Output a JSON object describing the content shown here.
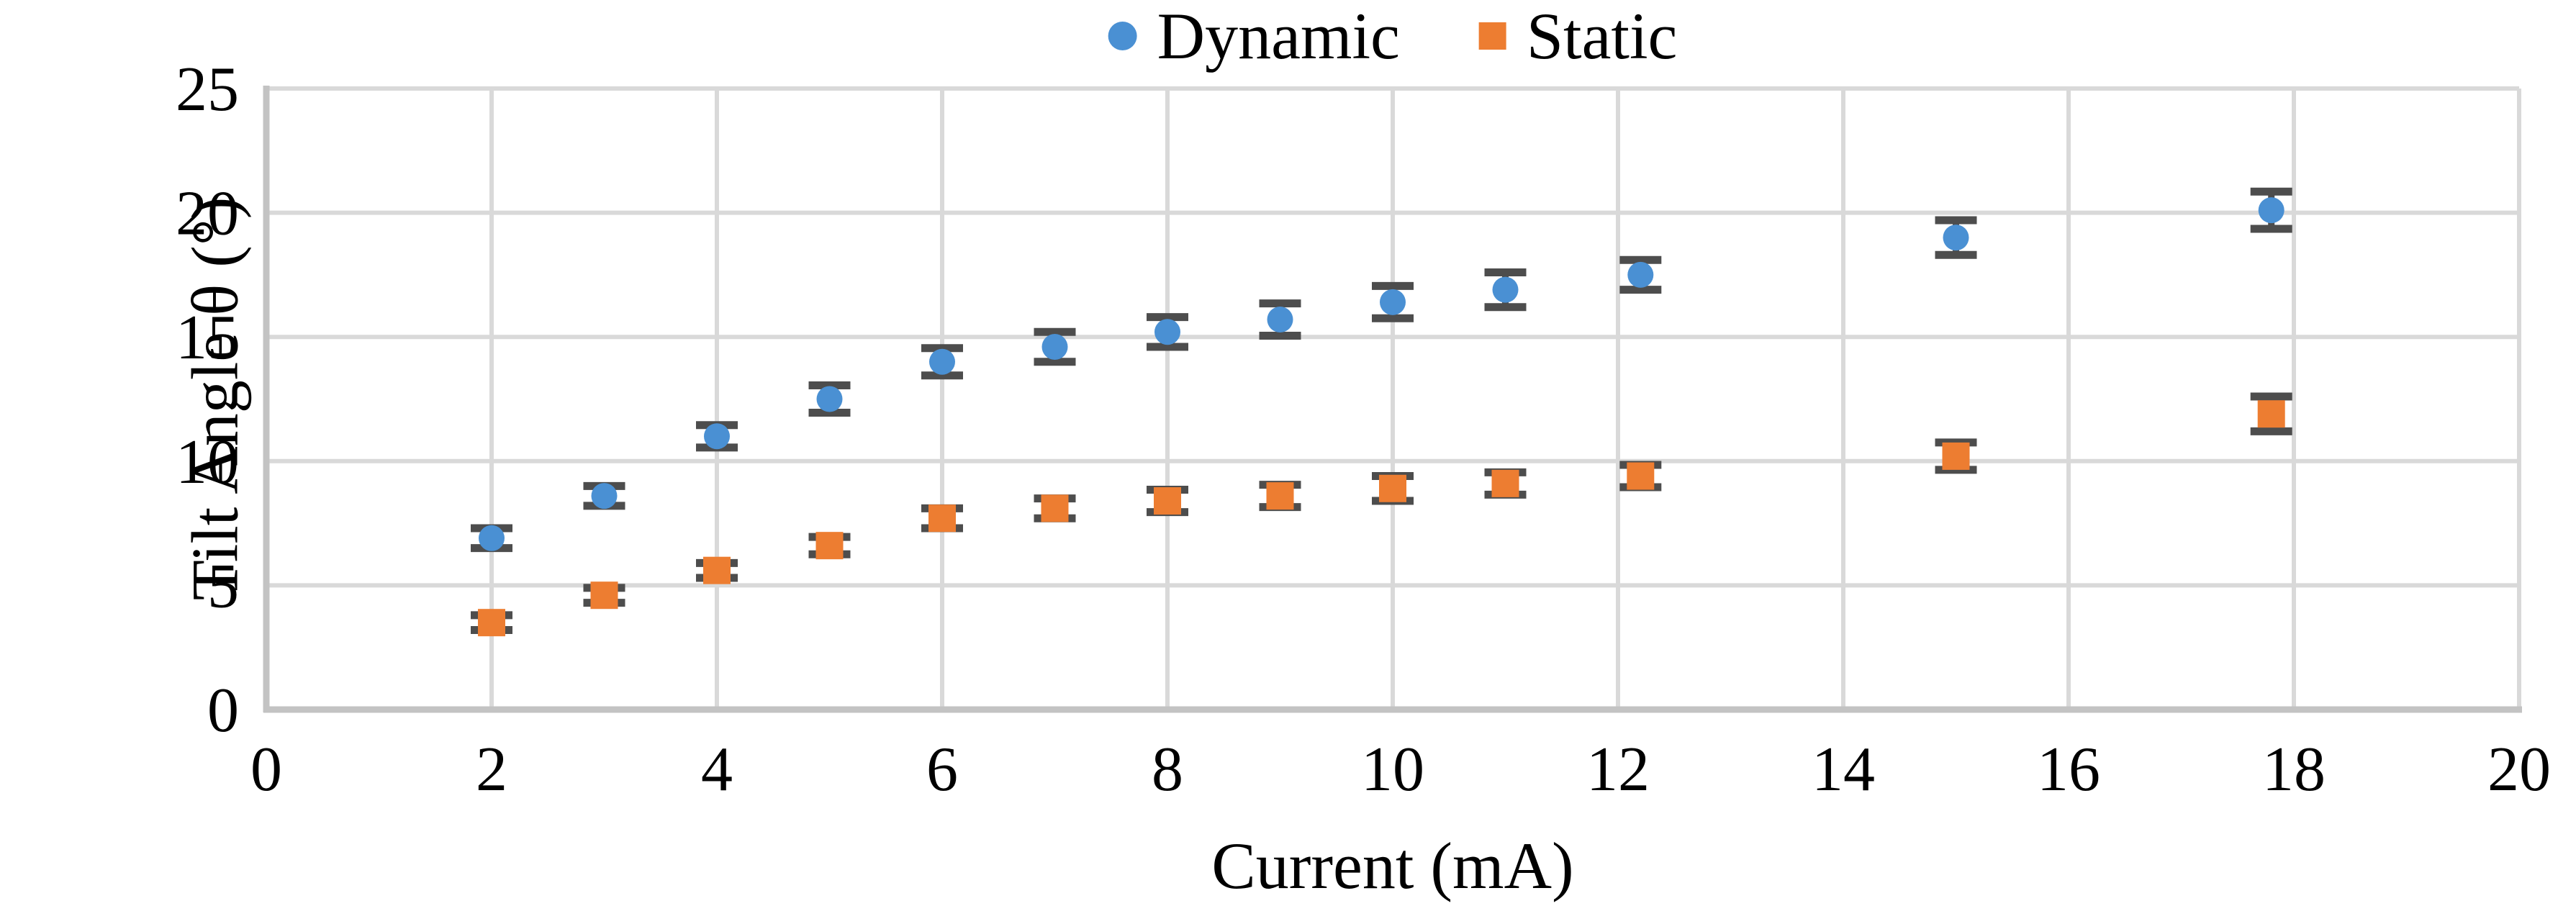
{
  "chart_data": {
    "type": "scatter",
    "title": "",
    "xlabel": "Current (mA)",
    "ylabel": "Tilt Angle θ (°)",
    "xlim": [
      0,
      20
    ],
    "ylim": [
      0,
      25
    ],
    "xticks": [
      0,
      2,
      4,
      6,
      8,
      10,
      12,
      14,
      16,
      18,
      20
    ],
    "yticks": [
      0,
      5,
      10,
      15,
      20,
      25
    ],
    "grid": true,
    "legend_position": "top-center",
    "x": [
      2,
      3,
      4,
      5,
      6,
      7,
      8,
      9,
      10,
      11,
      12.2,
      15,
      17.8
    ],
    "series": [
      {
        "name": "Dynamic",
        "marker": "circle",
        "color": "#4a90d3",
        "values": [
          6.9,
          8.6,
          11.0,
          12.5,
          14.0,
          14.6,
          15.2,
          15.7,
          16.4,
          16.9,
          17.5,
          19.0,
          20.1
        ],
        "yerr": [
          0.4,
          0.4,
          0.45,
          0.55,
          0.55,
          0.6,
          0.6,
          0.65,
          0.65,
          0.7,
          0.6,
          0.7,
          0.75
        ]
      },
      {
        "name": "Static",
        "marker": "square",
        "color": "#ed7d31",
        "values": [
          3.5,
          4.6,
          5.6,
          6.6,
          7.7,
          8.1,
          8.4,
          8.6,
          8.9,
          9.1,
          9.4,
          10.2,
          11.9
        ],
        "yerr": [
          0.3,
          0.3,
          0.3,
          0.35,
          0.4,
          0.4,
          0.45,
          0.45,
          0.5,
          0.45,
          0.45,
          0.55,
          0.7
        ]
      }
    ],
    "colors": {
      "gridline": "#d9d9d9",
      "axis_line": "#c3c3c3",
      "error_bar": "#4d4d4d",
      "text": "#000000"
    }
  },
  "legend": {
    "dynamic_label": "Dynamic",
    "static_label": "Static"
  },
  "axes": {
    "x_title": "Current (mA)",
    "y_title": "Tilt Angle θ (°)"
  }
}
